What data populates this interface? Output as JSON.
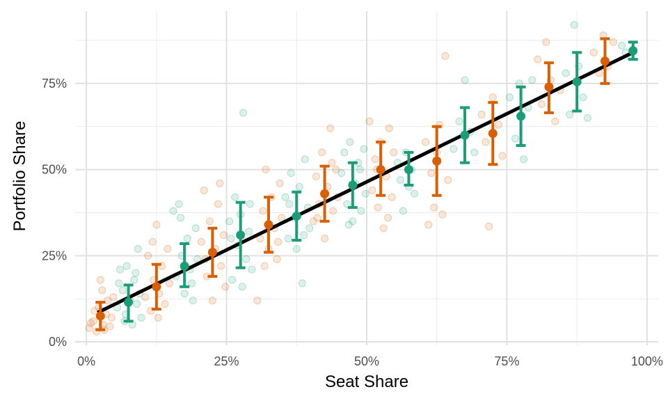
{
  "chart_data": {
    "type": "scatter",
    "title": "",
    "xlabel": "Seat Share",
    "ylabel": "Portfolio Share",
    "xlim": [
      -0.02,
      1.02
    ],
    "ylim": [
      -0.01,
      0.96
    ],
    "x_ticks": [
      {
        "value": 0.0,
        "label": "0%"
      },
      {
        "value": 0.25,
        "label": "25%"
      },
      {
        "value": 0.5,
        "label": "50%"
      },
      {
        "value": 0.75,
        "label": "75%"
      },
      {
        "value": 1.0,
        "label": "100%"
      }
    ],
    "y_ticks": [
      {
        "value": 0.0,
        "label": "0%"
      },
      {
        "value": 0.25,
        "label": "25%"
      },
      {
        "value": 0.5,
        "label": "50%"
      },
      {
        "value": 0.75,
        "label": "75%"
      }
    ],
    "minor_x": [
      0.125,
      0.375,
      0.625,
      0.875
    ],
    "minor_y": [
      0.125,
      0.375,
      0.625,
      0.875
    ],
    "grid": true,
    "colors": {
      "orange": "#d95f02",
      "green": "#1b9e77",
      "fit": "#000000"
    },
    "fit_line": {
      "x": [
        0.02,
        0.975
      ],
      "y": [
        0.085,
        0.84
      ]
    },
    "series": [
      {
        "color": "orange",
        "bins": [
          {
            "x": 0.025,
            "mean": 0.075,
            "low": 0.035,
            "high": 0.115
          },
          {
            "x": 0.125,
            "mean": 0.16,
            "low": 0.095,
            "high": 0.225
          },
          {
            "x": 0.225,
            "mean": 0.26,
            "low": 0.19,
            "high": 0.33
          },
          {
            "x": 0.325,
            "mean": 0.34,
            "low": 0.26,
            "high": 0.42
          },
          {
            "x": 0.425,
            "mean": 0.43,
            "low": 0.35,
            "high": 0.51
          },
          {
            "x": 0.525,
            "mean": 0.5,
            "low": 0.425,
            "high": 0.58
          },
          {
            "x": 0.625,
            "mean": 0.525,
            "low": 0.425,
            "high": 0.625
          },
          {
            "x": 0.725,
            "mean": 0.605,
            "low": 0.515,
            "high": 0.695
          },
          {
            "x": 0.825,
            "mean": 0.74,
            "low": 0.665,
            "high": 0.81
          },
          {
            "x": 0.925,
            "mean": 0.815,
            "low": 0.75,
            "high": 0.88
          }
        ]
      },
      {
        "color": "green",
        "bins": [
          {
            "x": 0.075,
            "mean": 0.115,
            "low": 0.06,
            "high": 0.165
          },
          {
            "x": 0.175,
            "mean": 0.22,
            "low": 0.16,
            "high": 0.285
          },
          {
            "x": 0.275,
            "mean": 0.31,
            "low": 0.215,
            "high": 0.405
          },
          {
            "x": 0.375,
            "mean": 0.365,
            "low": 0.295,
            "high": 0.435
          },
          {
            "x": 0.475,
            "mean": 0.455,
            "low": 0.39,
            "high": 0.52
          },
          {
            "x": 0.575,
            "mean": 0.5,
            "low": 0.455,
            "high": 0.55
          },
          {
            "x": 0.675,
            "mean": 0.6,
            "low": 0.52,
            "high": 0.68
          },
          {
            "x": 0.775,
            "mean": 0.655,
            "low": 0.57,
            "high": 0.74
          },
          {
            "x": 0.875,
            "mean": 0.755,
            "low": 0.67,
            "high": 0.84
          },
          {
            "x": 0.975,
            "mean": 0.845,
            "low": 0.82,
            "high": 0.87
          }
        ]
      }
    ],
    "points": [
      {
        "x": 0.005,
        "y": 0.04,
        "c": "orange"
      },
      {
        "x": 0.012,
        "y": 0.06,
        "c": "orange"
      },
      {
        "x": 0.018,
        "y": 0.03,
        "c": "orange"
      },
      {
        "x": 0.022,
        "y": 0.1,
        "c": "orange"
      },
      {
        "x": 0.028,
        "y": 0.15,
        "c": "orange"
      },
      {
        "x": 0.03,
        "y": 0.05,
        "c": "orange"
      },
      {
        "x": 0.035,
        "y": 0.08,
        "c": "orange"
      },
      {
        "x": 0.038,
        "y": 0.12,
        "c": "orange"
      },
      {
        "x": 0.042,
        "y": 0.045,
        "c": "orange"
      },
      {
        "x": 0.045,
        "y": 0.07,
        "c": "orange"
      },
      {
        "x": 0.015,
        "y": 0.09,
        "c": "orange"
      },
      {
        "x": 0.025,
        "y": 0.18,
        "c": "orange"
      },
      {
        "x": 0.048,
        "y": 0.13,
        "c": "orange"
      },
      {
        "x": 0.032,
        "y": 0.035,
        "c": "orange"
      },
      {
        "x": 0.008,
        "y": 0.055,
        "c": "orange"
      },
      {
        "x": 0.055,
        "y": 0.1,
        "c": "green"
      },
      {
        "x": 0.06,
        "y": 0.21,
        "c": "green"
      },
      {
        "x": 0.065,
        "y": 0.15,
        "c": "green"
      },
      {
        "x": 0.07,
        "y": 0.08,
        "c": "green"
      },
      {
        "x": 0.072,
        "y": 0.22,
        "c": "green"
      },
      {
        "x": 0.078,
        "y": 0.12,
        "c": "green"
      },
      {
        "x": 0.082,
        "y": 0.05,
        "c": "green"
      },
      {
        "x": 0.085,
        "y": 0.18,
        "c": "green"
      },
      {
        "x": 0.09,
        "y": 0.11,
        "c": "green"
      },
      {
        "x": 0.092,
        "y": 0.27,
        "c": "green"
      },
      {
        "x": 0.095,
        "y": 0.14,
        "c": "green"
      },
      {
        "x": 0.098,
        "y": 0.07,
        "c": "green"
      },
      {
        "x": 0.058,
        "y": 0.17,
        "c": "green"
      },
      {
        "x": 0.068,
        "y": 0.06,
        "c": "green"
      },
      {
        "x": 0.088,
        "y": 0.2,
        "c": "green"
      },
      {
        "x": 0.105,
        "y": 0.13,
        "c": "orange"
      },
      {
        "x": 0.11,
        "y": 0.25,
        "c": "orange"
      },
      {
        "x": 0.115,
        "y": 0.09,
        "c": "orange"
      },
      {
        "x": 0.12,
        "y": 0.18,
        "c": "orange"
      },
      {
        "x": 0.125,
        "y": 0.34,
        "c": "orange"
      },
      {
        "x": 0.13,
        "y": 0.14,
        "c": "orange"
      },
      {
        "x": 0.135,
        "y": 0.22,
        "c": "orange"
      },
      {
        "x": 0.14,
        "y": 0.11,
        "c": "orange"
      },
      {
        "x": 0.145,
        "y": 0.27,
        "c": "orange"
      },
      {
        "x": 0.148,
        "y": 0.17,
        "c": "orange"
      },
      {
        "x": 0.118,
        "y": 0.29,
        "c": "orange"
      },
      {
        "x": 0.128,
        "y": 0.07,
        "c": "orange"
      },
      {
        "x": 0.155,
        "y": 0.38,
        "c": "green"
      },
      {
        "x": 0.16,
        "y": 0.19,
        "c": "green"
      },
      {
        "x": 0.165,
        "y": 0.4,
        "c": "green"
      },
      {
        "x": 0.17,
        "y": 0.25,
        "c": "green"
      },
      {
        "x": 0.175,
        "y": 0.14,
        "c": "green"
      },
      {
        "x": 0.18,
        "y": 0.3,
        "c": "green"
      },
      {
        "x": 0.185,
        "y": 0.21,
        "c": "green"
      },
      {
        "x": 0.19,
        "y": 0.12,
        "c": "green"
      },
      {
        "x": 0.195,
        "y": 0.33,
        "c": "green"
      },
      {
        "x": 0.198,
        "y": 0.24,
        "c": "green"
      },
      {
        "x": 0.168,
        "y": 0.36,
        "c": "green"
      },
      {
        "x": 0.188,
        "y": 0.17,
        "c": "green"
      },
      {
        "x": 0.205,
        "y": 0.29,
        "c": "orange"
      },
      {
        "x": 0.21,
        "y": 0.44,
        "c": "orange"
      },
      {
        "x": 0.215,
        "y": 0.19,
        "c": "orange"
      },
      {
        "x": 0.22,
        "y": 0.35,
        "c": "orange"
      },
      {
        "x": 0.225,
        "y": 0.12,
        "c": "orange"
      },
      {
        "x": 0.23,
        "y": 0.27,
        "c": "orange"
      },
      {
        "x": 0.235,
        "y": 0.4,
        "c": "orange"
      },
      {
        "x": 0.24,
        "y": 0.22,
        "c": "orange"
      },
      {
        "x": 0.245,
        "y": 0.31,
        "c": "orange"
      },
      {
        "x": 0.248,
        "y": 0.16,
        "c": "orange"
      },
      {
        "x": 0.212,
        "y": 0.24,
        "c": "orange"
      },
      {
        "x": 0.238,
        "y": 0.46,
        "c": "orange"
      },
      {
        "x": 0.255,
        "y": 0.35,
        "c": "green"
      },
      {
        "x": 0.26,
        "y": 0.18,
        "c": "green"
      },
      {
        "x": 0.265,
        "y": 0.42,
        "c": "green"
      },
      {
        "x": 0.27,
        "y": 0.28,
        "c": "green"
      },
      {
        "x": 0.275,
        "y": 0.37,
        "c": "green"
      },
      {
        "x": 0.28,
        "y": 0.665,
        "c": "green"
      },
      {
        "x": 0.285,
        "y": 0.24,
        "c": "green"
      },
      {
        "x": 0.29,
        "y": 0.32,
        "c": "green"
      },
      {
        "x": 0.295,
        "y": 0.21,
        "c": "green"
      },
      {
        "x": 0.258,
        "y": 0.3,
        "c": "green"
      },
      {
        "x": 0.278,
        "y": 0.16,
        "c": "green"
      },
      {
        "x": 0.292,
        "y": 0.4,
        "c": "green"
      },
      {
        "x": 0.305,
        "y": 0.12,
        "c": "orange"
      },
      {
        "x": 0.31,
        "y": 0.3,
        "c": "orange"
      },
      {
        "x": 0.315,
        "y": 0.38,
        "c": "orange"
      },
      {
        "x": 0.32,
        "y": 0.5,
        "c": "orange"
      },
      {
        "x": 0.325,
        "y": 0.27,
        "c": "orange"
      },
      {
        "x": 0.33,
        "y": 0.42,
        "c": "orange"
      },
      {
        "x": 0.335,
        "y": 0.33,
        "c": "orange"
      },
      {
        "x": 0.34,
        "y": 0.24,
        "c": "orange"
      },
      {
        "x": 0.345,
        "y": 0.46,
        "c": "orange"
      },
      {
        "x": 0.348,
        "y": 0.36,
        "c": "orange"
      },
      {
        "x": 0.318,
        "y": 0.22,
        "c": "orange"
      },
      {
        "x": 0.342,
        "y": 0.29,
        "c": "orange"
      },
      {
        "x": 0.355,
        "y": 0.42,
        "c": "green"
      },
      {
        "x": 0.36,
        "y": 0.3,
        "c": "green"
      },
      {
        "x": 0.365,
        "y": 0.49,
        "c": "green"
      },
      {
        "x": 0.37,
        "y": 0.36,
        "c": "green"
      },
      {
        "x": 0.375,
        "y": 0.27,
        "c": "green"
      },
      {
        "x": 0.38,
        "y": 0.45,
        "c": "green"
      },
      {
        "x": 0.385,
        "y": 0.17,
        "c": "green"
      },
      {
        "x": 0.39,
        "y": 0.53,
        "c": "green"
      },
      {
        "x": 0.395,
        "y": 0.39,
        "c": "green"
      },
      {
        "x": 0.398,
        "y": 0.33,
        "c": "green"
      },
      {
        "x": 0.362,
        "y": 0.4,
        "c": "green"
      },
      {
        "x": 0.388,
        "y": 0.31,
        "c": "green"
      },
      {
        "x": 0.405,
        "y": 0.35,
        "c": "orange"
      },
      {
        "x": 0.41,
        "y": 0.48,
        "c": "orange"
      },
      {
        "x": 0.415,
        "y": 0.4,
        "c": "orange"
      },
      {
        "x": 0.42,
        "y": 0.55,
        "c": "orange"
      },
      {
        "x": 0.425,
        "y": 0.3,
        "c": "orange"
      },
      {
        "x": 0.43,
        "y": 0.45,
        "c": "orange"
      },
      {
        "x": 0.435,
        "y": 0.62,
        "c": "orange"
      },
      {
        "x": 0.44,
        "y": 0.38,
        "c": "orange"
      },
      {
        "x": 0.445,
        "y": 0.5,
        "c": "orange"
      },
      {
        "x": 0.448,
        "y": 0.42,
        "c": "orange"
      },
      {
        "x": 0.412,
        "y": 0.36,
        "c": "orange"
      },
      {
        "x": 0.438,
        "y": 0.52,
        "c": "orange"
      },
      {
        "x": 0.455,
        "y": 0.49,
        "c": "green"
      },
      {
        "x": 0.46,
        "y": 0.55,
        "c": "green"
      },
      {
        "x": 0.465,
        "y": 0.4,
        "c": "green"
      },
      {
        "x": 0.47,
        "y": 0.58,
        "c": "green"
      },
      {
        "x": 0.475,
        "y": 0.35,
        "c": "green"
      },
      {
        "x": 0.48,
        "y": 0.46,
        "c": "green"
      },
      {
        "x": 0.485,
        "y": 0.52,
        "c": "green"
      },
      {
        "x": 0.49,
        "y": 0.38,
        "c": "green"
      },
      {
        "x": 0.495,
        "y": 0.56,
        "c": "green"
      },
      {
        "x": 0.498,
        "y": 0.43,
        "c": "green"
      },
      {
        "x": 0.468,
        "y": 0.34,
        "c": "green"
      },
      {
        "x": 0.488,
        "y": 0.5,
        "c": "green"
      },
      {
        "x": 0.505,
        "y": 0.64,
        "c": "orange"
      },
      {
        "x": 0.51,
        "y": 0.44,
        "c": "orange"
      },
      {
        "x": 0.515,
        "y": 0.53,
        "c": "orange"
      },
      {
        "x": 0.52,
        "y": 0.39,
        "c": "orange"
      },
      {
        "x": 0.525,
        "y": 0.58,
        "c": "orange"
      },
      {
        "x": 0.53,
        "y": 0.33,
        "c": "orange"
      },
      {
        "x": 0.535,
        "y": 0.48,
        "c": "orange"
      },
      {
        "x": 0.54,
        "y": 0.62,
        "c": "orange"
      },
      {
        "x": 0.545,
        "y": 0.42,
        "c": "orange"
      },
      {
        "x": 0.548,
        "y": 0.55,
        "c": "orange"
      },
      {
        "x": 0.518,
        "y": 0.5,
        "c": "orange"
      },
      {
        "x": 0.538,
        "y": 0.36,
        "c": "orange"
      },
      {
        "x": 0.555,
        "y": 0.52,
        "c": "green"
      },
      {
        "x": 0.56,
        "y": 0.47,
        "c": "green"
      },
      {
        "x": 0.565,
        "y": 0.38,
        "c": "green"
      },
      {
        "x": 0.57,
        "y": 0.55,
        "c": "green"
      },
      {
        "x": 0.575,
        "y": 0.45,
        "c": "green"
      },
      {
        "x": 0.58,
        "y": 0.5,
        "c": "green"
      },
      {
        "x": 0.585,
        "y": 0.43,
        "c": "green"
      },
      {
        "x": 0.605,
        "y": 0.58,
        "c": "orange"
      },
      {
        "x": 0.61,
        "y": 0.34,
        "c": "orange"
      },
      {
        "x": 0.615,
        "y": 0.49,
        "c": "orange"
      },
      {
        "x": 0.62,
        "y": 0.39,
        "c": "orange"
      },
      {
        "x": 0.625,
        "y": 0.55,
        "c": "orange"
      },
      {
        "x": 0.63,
        "y": 0.63,
        "c": "orange"
      },
      {
        "x": 0.635,
        "y": 0.37,
        "c": "orange"
      },
      {
        "x": 0.64,
        "y": 0.83,
        "c": "orange"
      },
      {
        "x": 0.645,
        "y": 0.47,
        "c": "orange"
      },
      {
        "x": 0.655,
        "y": 0.56,
        "c": "green"
      },
      {
        "x": 0.665,
        "y": 0.64,
        "c": "green"
      },
      {
        "x": 0.675,
        "y": 0.76,
        "c": "green"
      },
      {
        "x": 0.685,
        "y": 0.61,
        "c": "green"
      },
      {
        "x": 0.692,
        "y": 0.55,
        "c": "green"
      },
      {
        "x": 0.705,
        "y": 0.66,
        "c": "orange"
      },
      {
        "x": 0.712,
        "y": 0.58,
        "c": "orange"
      },
      {
        "x": 0.718,
        "y": 0.335,
        "c": "orange"
      },
      {
        "x": 0.725,
        "y": 0.71,
        "c": "orange"
      },
      {
        "x": 0.735,
        "y": 0.63,
        "c": "orange"
      },
      {
        "x": 0.742,
        "y": 0.54,
        "c": "orange"
      },
      {
        "x": 0.755,
        "y": 0.71,
        "c": "green"
      },
      {
        "x": 0.765,
        "y": 0.59,
        "c": "green"
      },
      {
        "x": 0.772,
        "y": 0.75,
        "c": "green"
      },
      {
        "x": 0.78,
        "y": 0.53,
        "c": "green"
      },
      {
        "x": 0.788,
        "y": 0.68,
        "c": "green"
      },
      {
        "x": 0.795,
        "y": 0.76,
        "c": "green"
      },
      {
        "x": 0.805,
        "y": 0.82,
        "c": "orange"
      },
      {
        "x": 0.812,
        "y": 0.69,
        "c": "orange"
      },
      {
        "x": 0.82,
        "y": 0.87,
        "c": "orange"
      },
      {
        "x": 0.828,
        "y": 0.76,
        "c": "orange"
      },
      {
        "x": 0.836,
        "y": 0.64,
        "c": "orange"
      },
      {
        "x": 0.845,
        "y": 0.73,
        "c": "orange"
      },
      {
        "x": 0.855,
        "y": 0.78,
        "c": "green"
      },
      {
        "x": 0.862,
        "y": 0.66,
        "c": "green"
      },
      {
        "x": 0.87,
        "y": 0.92,
        "c": "green"
      },
      {
        "x": 0.878,
        "y": 0.8,
        "c": "green"
      },
      {
        "x": 0.886,
        "y": 0.71,
        "c": "green"
      },
      {
        "x": 0.894,
        "y": 0.65,
        "c": "green"
      },
      {
        "x": 0.905,
        "y": 0.84,
        "c": "orange"
      },
      {
        "x": 0.915,
        "y": 0.78,
        "c": "orange"
      },
      {
        "x": 0.922,
        "y": 0.89,
        "c": "orange"
      },
      {
        "x": 0.93,
        "y": 0.8,
        "c": "orange"
      },
      {
        "x": 0.94,
        "y": 0.87,
        "c": "orange"
      },
      {
        "x": 0.955,
        "y": 0.86,
        "c": "green"
      },
      {
        "x": 0.962,
        "y": 0.84,
        "c": "green"
      },
      {
        "x": 0.97,
        "y": 0.83,
        "c": "green"
      }
    ]
  }
}
